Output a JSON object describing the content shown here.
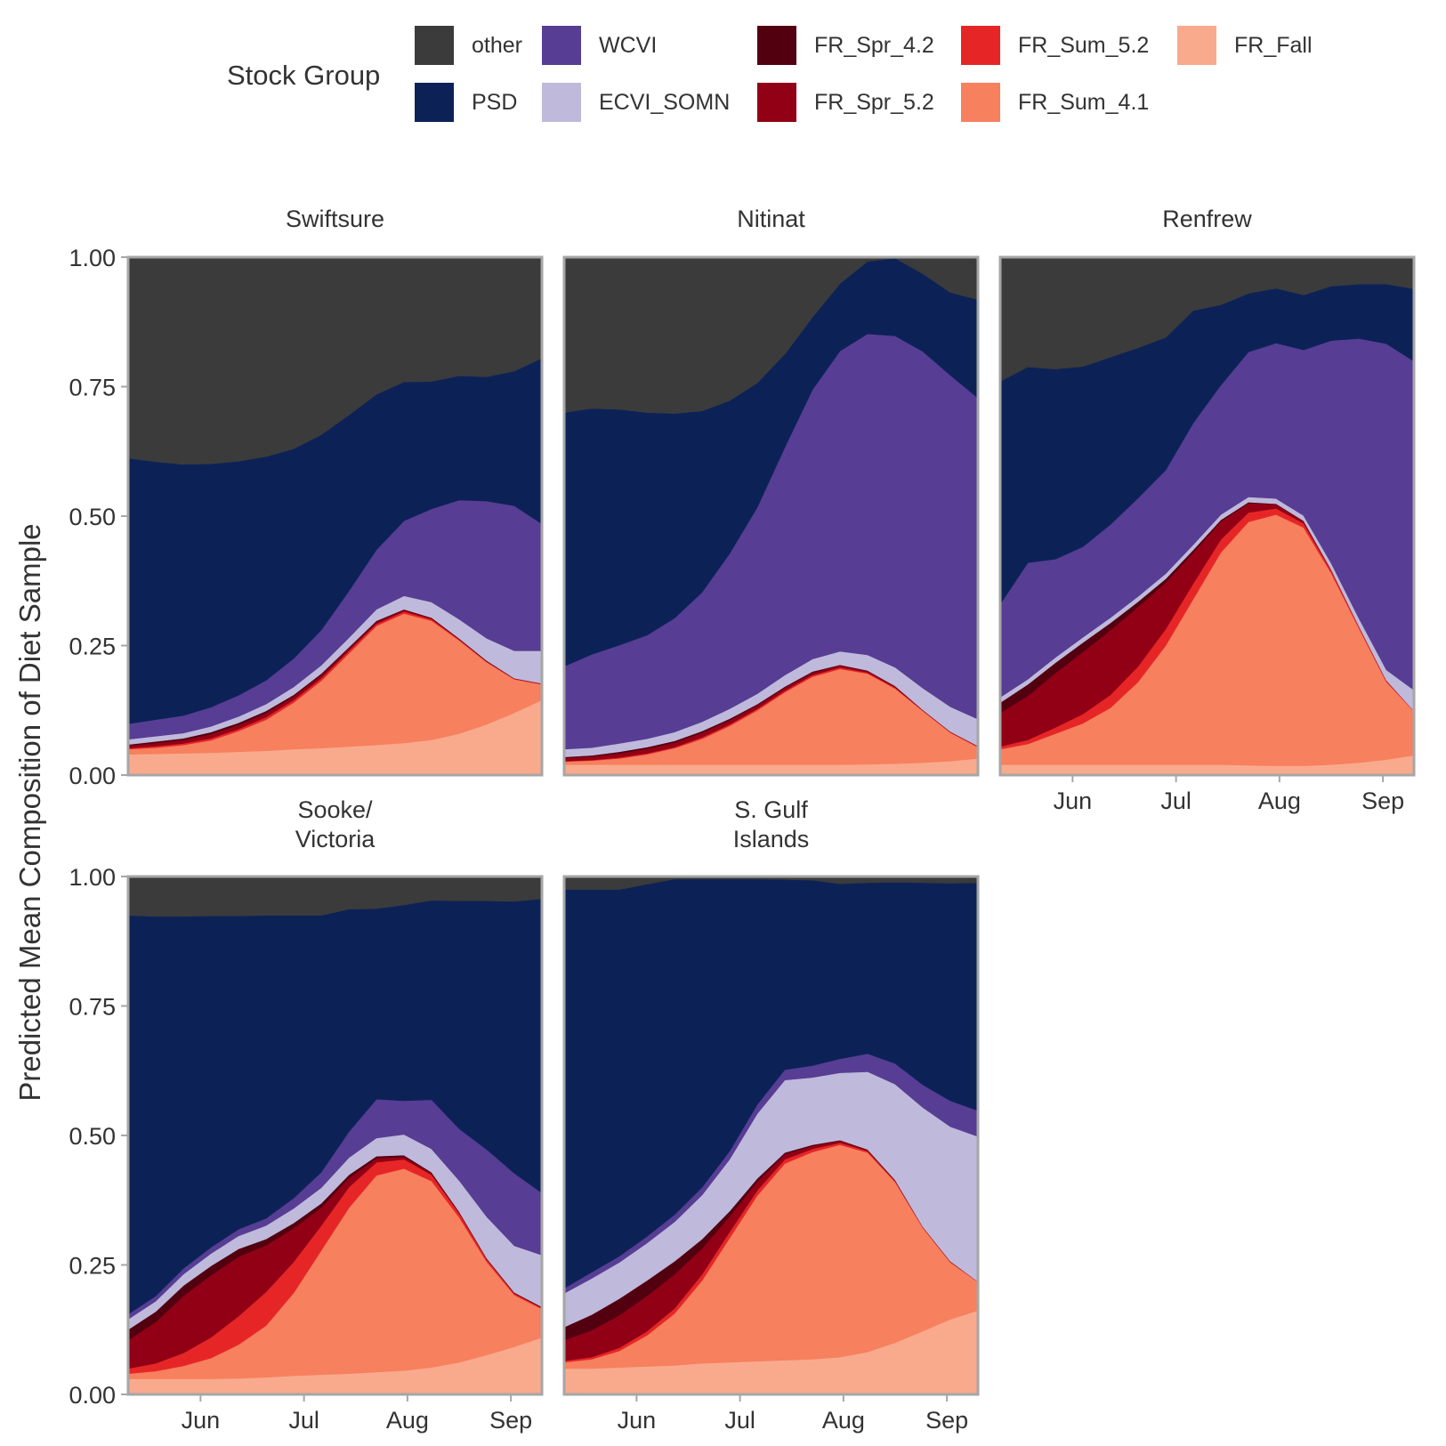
{
  "chart_data": {
    "type": "area",
    "title": "",
    "ylabel": "Predicted Mean Composition of Diet Sample",
    "xlabel": "",
    "legend": {
      "title": "Stock Group",
      "placement": "top",
      "entries": [
        {
          "name": "other",
          "color": "#3b3b3b"
        },
        {
          "name": "PSD",
          "color": "#0c2257"
        },
        {
          "name": "WCVI",
          "color": "#573d93"
        },
        {
          "name": "ECVI_SOMN",
          "color": "#bfbadb"
        },
        {
          "name": "FR_Spr_4.2",
          "color": "#520010"
        },
        {
          "name": "FR_Spr_5.2",
          "color": "#920016"
        },
        {
          "name": "FR_Sum_5.2",
          "color": "#e62626"
        },
        {
          "name": "FR_Sum_4.1",
          "color": "#f7805f"
        },
        {
          "name": "FR_Fall",
          "color": "#f9aa8d"
        }
      ]
    },
    "stack_order_bottom_to_top": [
      "FR_Fall",
      "FR_Sum_4.1",
      "FR_Sum_5.2",
      "FR_Spr_5.2",
      "FR_Spr_4.2",
      "ECVI_SOMN",
      "WCVI",
      "PSD",
      "other"
    ],
    "xlim": [
      0,
      120
    ],
    "ylim": [
      0,
      1
    ],
    "x_ticks": [
      {
        "label": "Jun",
        "x": 21
      },
      {
        "label": "Jul",
        "x": 51
      },
      {
        "label": "Aug",
        "x": 81
      },
      {
        "label": "Sep",
        "x": 111
      }
    ],
    "y_ticks": [
      "0.00",
      "0.25",
      "0.50",
      "0.75",
      "1.00"
    ],
    "grid": false,
    "x": [
      0,
      8,
      16,
      24,
      32,
      40,
      48,
      56,
      64,
      72,
      80,
      88,
      96,
      104,
      112,
      120
    ],
    "panels": [
      {
        "name": "Swiftsure",
        "series": {
          "FR_Fall": [
            0.04,
            0.041,
            0.042,
            0.043,
            0.045,
            0.047,
            0.05,
            0.052,
            0.055,
            0.058,
            0.062,
            0.068,
            0.08,
            0.098,
            0.12,
            0.145
          ],
          "FR_Sum_4.1": [
            0.01,
            0.012,
            0.016,
            0.024,
            0.04,
            0.06,
            0.09,
            0.13,
            0.18,
            0.23,
            0.25,
            0.23,
            0.18,
            0.12,
            0.065,
            0.03
          ],
          "FR_Sum_5.2": [
            0.002,
            0.003,
            0.003,
            0.004,
            0.004,
            0.005,
            0.005,
            0.005,
            0.005,
            0.004,
            0.004,
            0.003,
            0.002,
            0.001,
            0.001,
            0.001
          ],
          "FR_Spr_5.2": [
            0.005,
            0.006,
            0.007,
            0.008,
            0.008,
            0.008,
            0.007,
            0.006,
            0.005,
            0.004,
            0.003,
            0.002,
            0.001,
            0.001,
            0.001,
            0.001
          ],
          "FR_Spr_4.2": [
            0.002,
            0.003,
            0.003,
            0.004,
            0.004,
            0.004,
            0.003,
            0.003,
            0.002,
            0.002,
            0.001,
            0.001,
            0.001,
            0.001,
            0.0,
            0.0
          ],
          "ECVI_SOMN": [
            0.01,
            0.01,
            0.01,
            0.011,
            0.012,
            0.013,
            0.015,
            0.016,
            0.018,
            0.022,
            0.026,
            0.03,
            0.037,
            0.043,
            0.053,
            0.063
          ],
          "WCVI": [
            0.03,
            0.032,
            0.034,
            0.037,
            0.041,
            0.046,
            0.055,
            0.068,
            0.09,
            0.115,
            0.145,
            0.18,
            0.23,
            0.265,
            0.28,
            0.245
          ],
          "PSD": [
            0.513,
            0.498,
            0.485,
            0.47,
            0.452,
            0.432,
            0.405,
            0.377,
            0.34,
            0.3,
            0.268,
            0.246,
            0.24,
            0.24,
            0.26,
            0.32
          ],
          "other": [
            0.388,
            0.395,
            0.4,
            0.399,
            0.394,
            0.383,
            0.37,
            0.343,
            0.305,
            0.265,
            0.241,
            0.24,
            0.229,
            0.231,
            0.22,
            0.195
          ]
        }
      },
      {
        "name": "Nitinat",
        "series": {
          "FR_Fall": [
            0.02,
            0.02,
            0.02,
            0.02,
            0.02,
            0.02,
            0.02,
            0.02,
            0.02,
            0.02,
            0.02,
            0.021,
            0.022,
            0.024,
            0.027,
            0.032
          ],
          "FR_Sum_4.1": [
            0.006,
            0.008,
            0.012,
            0.02,
            0.032,
            0.05,
            0.075,
            0.105,
            0.14,
            0.17,
            0.185,
            0.175,
            0.145,
            0.1,
            0.055,
            0.022
          ],
          "FR_Sum_5.2": [
            0.001,
            0.001,
            0.002,
            0.002,
            0.002,
            0.003,
            0.003,
            0.003,
            0.003,
            0.003,
            0.003,
            0.002,
            0.002,
            0.001,
            0.001,
            0.001
          ],
          "FR_Spr_5.2": [
            0.006,
            0.007,
            0.008,
            0.009,
            0.009,
            0.009,
            0.008,
            0.007,
            0.006,
            0.005,
            0.004,
            0.003,
            0.002,
            0.001,
            0.001,
            0.001
          ],
          "FR_Spr_4.2": [
            0.002,
            0.002,
            0.003,
            0.003,
            0.003,
            0.003,
            0.003,
            0.002,
            0.002,
            0.002,
            0.001,
            0.001,
            0.001,
            0.0,
            0.0,
            0.0
          ],
          "ECVI_SOMN": [
            0.015,
            0.015,
            0.016,
            0.016,
            0.017,
            0.018,
            0.019,
            0.02,
            0.022,
            0.024,
            0.026,
            0.03,
            0.036,
            0.042,
            0.048,
            0.052
          ],
          "WCVI": [
            0.16,
            0.18,
            0.19,
            0.2,
            0.22,
            0.25,
            0.3,
            0.36,
            0.44,
            0.52,
            0.58,
            0.62,
            0.64,
            0.65,
            0.64,
            0.62
          ],
          "PSD": [
            0.49,
            0.475,
            0.455,
            0.43,
            0.395,
            0.35,
            0.295,
            0.24,
            0.18,
            0.14,
            0.13,
            0.14,
            0.15,
            0.15,
            0.16,
            0.19
          ],
          "other": [
            0.3,
            0.292,
            0.294,
            0.3,
            0.302,
            0.297,
            0.277,
            0.243,
            0.207,
            0.176,
            0.151,
            0.128,
            0.112,
            0.102,
            0.093,
            0.082
          ]
        }
      },
      {
        "name": "Renfrew",
        "series": {
          "FR_Fall": [
            0.02,
            0.02,
            0.02,
            0.02,
            0.02,
            0.02,
            0.02,
            0.02,
            0.02,
            0.019,
            0.018,
            0.018,
            0.02,
            0.024,
            0.03,
            0.038
          ],
          "FR_Sum_4.1": [
            0.03,
            0.04,
            0.06,
            0.08,
            0.11,
            0.16,
            0.23,
            0.32,
            0.41,
            0.47,
            0.485,
            0.46,
            0.37,
            0.26,
            0.15,
            0.085
          ],
          "FR_Sum_5.2": [
            0.005,
            0.008,
            0.012,
            0.018,
            0.025,
            0.03,
            0.032,
            0.03,
            0.025,
            0.018,
            0.012,
            0.008,
            0.005,
            0.003,
            0.002,
            0.001
          ],
          "FR_Spr_5.2": [
            0.065,
            0.085,
            0.105,
            0.12,
            0.125,
            0.115,
            0.09,
            0.06,
            0.035,
            0.018,
            0.008,
            0.004,
            0.002,
            0.001,
            0.001,
            0.0
          ],
          "FR_Spr_4.2": [
            0.02,
            0.022,
            0.02,
            0.018,
            0.014,
            0.01,
            0.007,
            0.005,
            0.003,
            0.002,
            0.001,
            0.001,
            0.0,
            0.0,
            0.0,
            0.0
          ],
          "ECVI_SOMN": [
            0.01,
            0.01,
            0.01,
            0.01,
            0.01,
            0.01,
            0.01,
            0.01,
            0.01,
            0.01,
            0.01,
            0.01,
            0.012,
            0.015,
            0.02,
            0.04
          ],
          "WCVI": [
            0.18,
            0.225,
            0.19,
            0.175,
            0.18,
            0.19,
            0.2,
            0.235,
            0.25,
            0.28,
            0.3,
            0.32,
            0.43,
            0.54,
            0.63,
            0.635
          ],
          "PSD": [
            0.43,
            0.378,
            0.367,
            0.348,
            0.323,
            0.29,
            0.256,
            0.217,
            0.155,
            0.113,
            0.106,
            0.106,
            0.105,
            0.105,
            0.115,
            0.14
          ],
          "other": [
            0.24,
            0.212,
            0.216,
            0.211,
            0.193,
            0.175,
            0.155,
            0.103,
            0.092,
            0.07,
            0.06,
            0.073,
            0.056,
            0.052,
            0.052,
            0.061
          ]
        }
      },
      {
        "name": "Sooke/ Victoria",
        "series": {
          "FR_Fall": [
            0.03,
            0.03,
            0.03,
            0.03,
            0.031,
            0.033,
            0.036,
            0.038,
            0.04,
            0.043,
            0.046,
            0.052,
            0.062,
            0.076,
            0.092,
            0.11
          ],
          "FR_Sum_4.1": [
            0.01,
            0.015,
            0.025,
            0.04,
            0.065,
            0.1,
            0.16,
            0.24,
            0.32,
            0.38,
            0.39,
            0.36,
            0.28,
            0.18,
            0.1,
            0.055
          ],
          "FR_Sum_5.2": [
            0.01,
            0.015,
            0.025,
            0.04,
            0.055,
            0.065,
            0.06,
            0.048,
            0.04,
            0.025,
            0.018,
            0.012,
            0.008,
            0.005,
            0.003,
            0.002
          ],
          "FR_Spr_5.2": [
            0.055,
            0.08,
            0.11,
            0.12,
            0.115,
            0.09,
            0.065,
            0.035,
            0.018,
            0.008,
            0.005,
            0.003,
            0.002,
            0.001,
            0.001,
            0.001
          ],
          "FR_Spr_4.2": [
            0.02,
            0.02,
            0.02,
            0.018,
            0.015,
            0.012,
            0.01,
            0.008,
            0.006,
            0.004,
            0.003,
            0.002,
            0.001,
            0.001,
            0.001,
            0.001
          ],
          "ECVI_SOMN": [
            0.02,
            0.02,
            0.022,
            0.024,
            0.025,
            0.026,
            0.028,
            0.03,
            0.033,
            0.035,
            0.04,
            0.045,
            0.06,
            0.08,
            0.09,
            0.1
          ],
          "WCVI": [
            0.01,
            0.01,
            0.011,
            0.012,
            0.013,
            0.014,
            0.02,
            0.03,
            0.05,
            0.075,
            0.065,
            0.095,
            0.1,
            0.13,
            0.14,
            0.12
          ],
          "PSD": [
            0.77,
            0.733,
            0.68,
            0.64,
            0.605,
            0.585,
            0.546,
            0.496,
            0.43,
            0.368,
            0.378,
            0.385,
            0.44,
            0.48,
            0.525,
            0.568
          ],
          "other": [
            0.075,
            0.077,
            0.077,
            0.076,
            0.076,
            0.075,
            0.075,
            0.075,
            0.063,
            0.062,
            0.055,
            0.046,
            0.047,
            0.047,
            0.048,
            0.043
          ]
        }
      },
      {
        "name": "S. Gulf Islands",
        "series": {
          "FR_Fall": [
            0.05,
            0.05,
            0.052,
            0.054,
            0.056,
            0.06,
            0.062,
            0.064,
            0.066,
            0.068,
            0.072,
            0.082,
            0.1,
            0.122,
            0.145,
            0.162
          ],
          "FR_Sum_4.1": [
            0.012,
            0.018,
            0.032,
            0.06,
            0.1,
            0.16,
            0.24,
            0.32,
            0.38,
            0.4,
            0.41,
            0.385,
            0.31,
            0.2,
            0.11,
            0.055
          ],
          "FR_Sum_5.2": [
            0.003,
            0.004,
            0.006,
            0.008,
            0.01,
            0.012,
            0.012,
            0.01,
            0.008,
            0.006,
            0.004,
            0.003,
            0.002,
            0.001,
            0.001,
            0.001
          ],
          "FR_Spr_5.2": [
            0.04,
            0.052,
            0.063,
            0.068,
            0.066,
            0.05,
            0.03,
            0.017,
            0.01,
            0.006,
            0.004,
            0.002,
            0.001,
            0.001,
            0.001,
            0.0
          ],
          "FR_Spr_4.2": [
            0.025,
            0.03,
            0.032,
            0.03,
            0.025,
            0.018,
            0.01,
            0.006,
            0.003,
            0.002,
            0.001,
            0.001,
            0.001,
            0.0,
            0.0,
            0.0
          ],
          "ECVI_SOMN": [
            0.065,
            0.07,
            0.07,
            0.072,
            0.076,
            0.085,
            0.1,
            0.125,
            0.14,
            0.13,
            0.13,
            0.15,
            0.185,
            0.23,
            0.26,
            0.28
          ],
          "WCVI": [
            0.01,
            0.012,
            0.012,
            0.013,
            0.014,
            0.015,
            0.016,
            0.018,
            0.02,
            0.023,
            0.027,
            0.035,
            0.04,
            0.044,
            0.05,
            0.05
          ],
          "PSD": [
            0.77,
            0.739,
            0.708,
            0.68,
            0.648,
            0.595,
            0.525,
            0.435,
            0.367,
            0.358,
            0.338,
            0.33,
            0.35,
            0.39,
            0.42,
            0.44
          ],
          "other": [
            0.025,
            0.025,
            0.025,
            0.025,
            0.025,
            0.025,
            0.025,
            0.025,
            0.016,
            0.012,
            0.014,
            0.012,
            0.011,
            0.012,
            0.013,
            0.012
          ]
        }
      }
    ]
  }
}
